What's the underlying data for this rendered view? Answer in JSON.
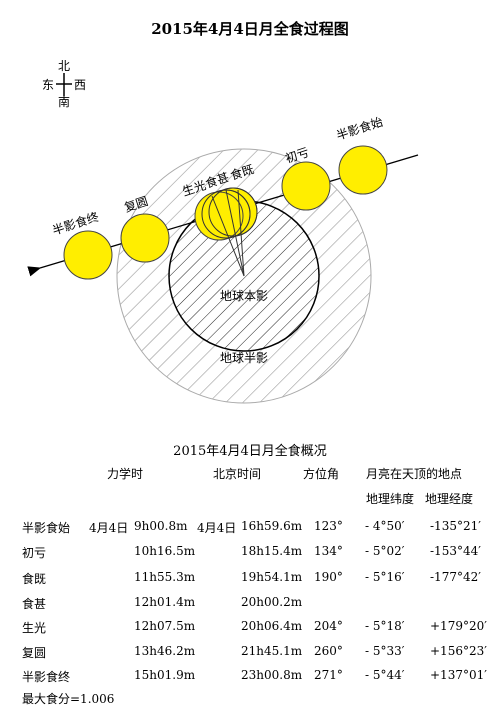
{
  "title": "2015年4月4日月全食过程图",
  "compass": {
    "north": "北",
    "south": "南",
    "east": "东",
    "west": "西"
  },
  "diagram_labels": {
    "penumbra_begin": "半影食始",
    "umbra_begin": "初亏",
    "total_begin": "食既",
    "greatest": "食甚",
    "total_end": "生光",
    "umbra_end": "复圆",
    "penumbra_end": "半影食终",
    "umbra": "地球本影",
    "penumbra": "地球半影"
  },
  "colors": {
    "moon": "#ffee00",
    "moon_stroke": "#333333",
    "hatch_penumbra": "#999999",
    "hatch_umbra": "#222222"
  },
  "table": {
    "title": "2015年4月4日月全食概况",
    "headers": {
      "dynamical_time": "力学时",
      "beijing_time": "北京时间",
      "position_angle": "方位角",
      "zenith_location": "月亮在天顶的地点",
      "latitude": "地理纬度",
      "longitude": "地理经度"
    },
    "rows": [
      {
        "phase": "半影食始",
        "td_date": "4月4日",
        "td": "9h00.8m",
        "bj_date": "4月4日",
        "bj": "16h59.6m",
        "pa": "123°",
        "lat": "- 4°50′",
        "lon": "-135°21′"
      },
      {
        "phase": "初亏",
        "td_date": "",
        "td": "10h16.5m",
        "bj_date": "",
        "bj": "18h15.4m",
        "pa": "134°",
        "lat": "- 5°02′",
        "lon": "-153°44′"
      },
      {
        "phase": "食既",
        "td_date": "",
        "td": "11h55.3m",
        "bj_date": "",
        "bj": "19h54.1m",
        "pa": "190°",
        "lat": "- 5°16′",
        "lon": "-177°42′"
      },
      {
        "phase": "食甚",
        "td_date": "",
        "td": "12h01.4m",
        "bj_date": "",
        "bj": "20h00.2m",
        "pa": "",
        "lat": "",
        "lon": ""
      },
      {
        "phase": "生光",
        "td_date": "",
        "td": "12h07.5m",
        "bj_date": "",
        "bj": "20h06.4m",
        "pa": "204°",
        "lat": "- 5°18′",
        "lon": "+179°20′"
      },
      {
        "phase": "复圆",
        "td_date": "",
        "td": "13h46.2m",
        "bj_date": "",
        "bj": "21h45.1m",
        "pa": "260°",
        "lat": "- 5°33′",
        "lon": "+156°23′"
      },
      {
        "phase": "半影食终",
        "td_date": "",
        "td": "15h01.9m",
        "bj_date": "",
        "bj": "23h00.8m",
        "pa": "271°",
        "lat": "- 5°44′",
        "lon": "+137°01′"
      }
    ]
  },
  "footer": "最大食分=1.006"
}
